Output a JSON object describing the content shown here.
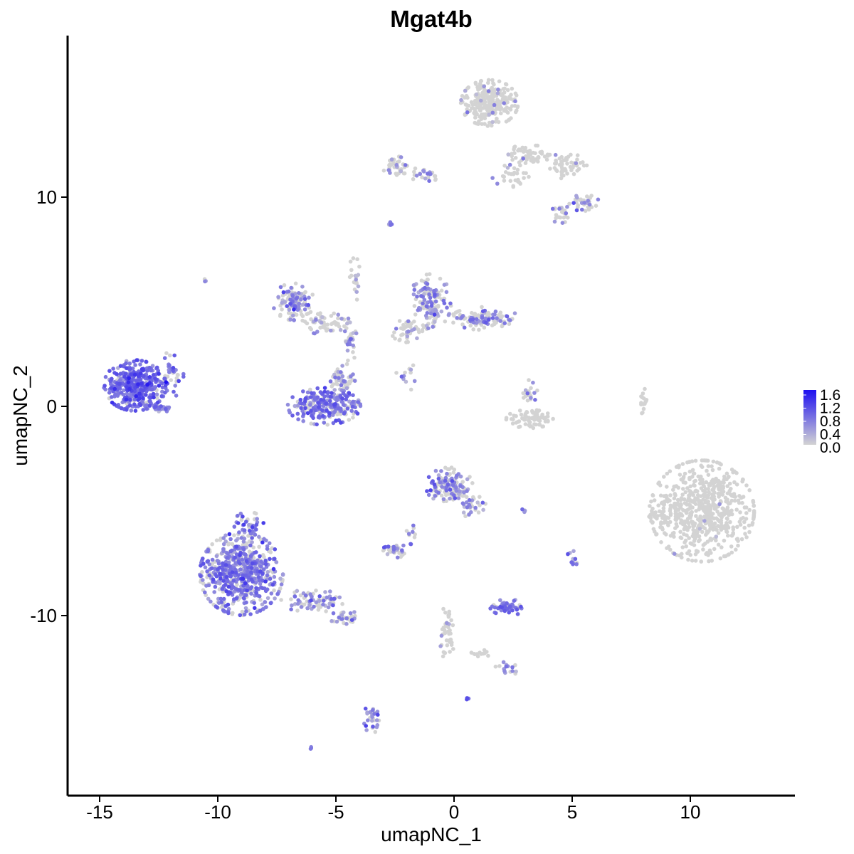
{
  "chart_data": {
    "type": "scatter",
    "title": "Mgat4b",
    "xlabel": "umapNC_1",
    "ylabel": "umapNC_2",
    "xlim": [
      -16.5,
      14.5
    ],
    "ylim": [
      -18.5,
      17.5
    ],
    "x_ticks": [
      -15,
      -10,
      -5,
      0,
      5,
      10
    ],
    "x_tick_labels": [
      "-15",
      "-10",
      "-5",
      "0",
      "5",
      "10"
    ],
    "y_ticks": [
      -10,
      0,
      10
    ],
    "y_tick_labels": [
      "-10",
      "0",
      "10"
    ],
    "grid": false,
    "legend": {
      "placement": "right",
      "type": "colorbar",
      "min": 0.0,
      "max": 1.6,
      "labels": [
        "1.6",
        "1.2",
        "0.8",
        "0.4",
        "0.0"
      ],
      "low_color": "#d3d3d3",
      "high_color": "#1e10f0"
    },
    "clusters": [
      {
        "cx": -13.5,
        "cy": 1.0,
        "rx": 1.2,
        "ry": 1.1,
        "n": 380,
        "expr": 0.85,
        "expr_frac": 0.9
      },
      {
        "cx": -12.0,
        "cy": 1.5,
        "rx": 0.5,
        "ry": 1.0,
        "n": 40,
        "expr": 0.8,
        "expr_frac": 0.85
      },
      {
        "cx": -12.4,
        "cy": -0.1,
        "rx": 0.5,
        "ry": 0.2,
        "n": 25,
        "expr": 0.7,
        "expr_frac": 0.7
      },
      {
        "cx": -5.5,
        "cy": 0.0,
        "rx": 1.4,
        "ry": 0.8,
        "n": 240,
        "expr": 0.75,
        "expr_frac": 0.75
      },
      {
        "cx": -4.8,
        "cy": 1.3,
        "rx": 0.7,
        "ry": 0.7,
        "n": 50,
        "expr": 0.5,
        "expr_frac": 0.4
      },
      {
        "cx": -6.8,
        "cy": 5.0,
        "rx": 0.8,
        "ry": 0.8,
        "n": 110,
        "expr": 0.6,
        "expr_frac": 0.45
      },
      {
        "cx": -5.5,
        "cy": 4.0,
        "rx": 1.0,
        "ry": 0.5,
        "n": 60,
        "expr": 0.5,
        "expr_frac": 0.35
      },
      {
        "cx": -4.5,
        "cy": 3.0,
        "rx": 0.4,
        "ry": 0.8,
        "n": 30,
        "expr": 0.5,
        "expr_frac": 0.35
      },
      {
        "cx": -4.2,
        "cy": 6.0,
        "rx": 0.3,
        "ry": 1.0,
        "n": 20,
        "expr": 0.4,
        "expr_frac": 0.2
      },
      {
        "cx": -1.0,
        "cy": 5.0,
        "rx": 0.8,
        "ry": 1.2,
        "n": 140,
        "expr": 0.6,
        "expr_frac": 0.5
      },
      {
        "cx": 1.3,
        "cy": 4.2,
        "rx": 1.3,
        "ry": 0.5,
        "n": 120,
        "expr": 0.6,
        "expr_frac": 0.4
      },
      {
        "cx": -2.0,
        "cy": 3.6,
        "rx": 0.6,
        "ry": 0.5,
        "n": 40,
        "expr": 0.4,
        "expr_frac": 0.25
      },
      {
        "cx": -2.0,
        "cy": 1.6,
        "rx": 0.4,
        "ry": 0.8,
        "n": 12,
        "expr": 0.4,
        "expr_frac": 0.2
      },
      {
        "cx": 1.5,
        "cy": 14.5,
        "rx": 1.1,
        "ry": 1.0,
        "n": 280,
        "expr": 0.5,
        "expr_frac": 0.03
      },
      {
        "cx": 3.2,
        "cy": 12.0,
        "rx": 1.0,
        "ry": 0.5,
        "n": 60,
        "expr": 0.5,
        "expr_frac": 0.03
      },
      {
        "cx": 4.8,
        "cy": 11.5,
        "rx": 0.8,
        "ry": 0.6,
        "n": 50,
        "expr": 0.5,
        "expr_frac": 0.05
      },
      {
        "cx": 5.5,
        "cy": 9.7,
        "rx": 0.6,
        "ry": 0.4,
        "n": 35,
        "expr": 0.6,
        "expr_frac": 0.3
      },
      {
        "cx": 4.5,
        "cy": 9.2,
        "rx": 0.4,
        "ry": 0.4,
        "n": 25,
        "expr": 0.6,
        "expr_frac": 0.3
      },
      {
        "cx": 2.5,
        "cy": 11.0,
        "rx": 0.8,
        "ry": 0.5,
        "n": 30,
        "expr": 0.5,
        "expr_frac": 0.03
      },
      {
        "cx": -2.5,
        "cy": 11.5,
        "rx": 0.5,
        "ry": 0.5,
        "n": 40,
        "expr": 0.6,
        "expr_frac": 0.15
      },
      {
        "cx": -1.2,
        "cy": 11.1,
        "rx": 0.7,
        "ry": 0.3,
        "n": 25,
        "expr": 0.6,
        "expr_frac": 0.3
      },
      {
        "cx": -2.7,
        "cy": 8.7,
        "rx": 0.1,
        "ry": 0.2,
        "n": 5,
        "expr": 0.7,
        "expr_frac": 0.6
      },
      {
        "cx": 10.5,
        "cy": -5.0,
        "rx": 2.0,
        "ry": 2.2,
        "n": 620,
        "expr": 0.5,
        "expr_frac": 0.01
      },
      {
        "cx": 8.8,
        "cy": -5.0,
        "rx": 0.6,
        "ry": 0.8,
        "n": 30,
        "expr": 0.5,
        "expr_frac": 0.02
      },
      {
        "cx": 3.2,
        "cy": -0.6,
        "rx": 0.9,
        "ry": 0.4,
        "n": 80,
        "expr": 0.5,
        "expr_frac": 0.03
      },
      {
        "cx": 3.2,
        "cy": 0.6,
        "rx": 0.3,
        "ry": 0.6,
        "n": 20,
        "expr": 0.6,
        "expr_frac": 0.4
      },
      {
        "cx": 8.0,
        "cy": 0.3,
        "rx": 0.15,
        "ry": 0.6,
        "n": 15,
        "expr": 0.5,
        "expr_frac": 0.0
      },
      {
        "cx": -0.2,
        "cy": -3.8,
        "rx": 0.9,
        "ry": 0.8,
        "n": 140,
        "expr": 0.6,
        "expr_frac": 0.45
      },
      {
        "cx": 0.8,
        "cy": -4.8,
        "rx": 0.5,
        "ry": 0.5,
        "n": 30,
        "expr": 0.5,
        "expr_frac": 0.35
      },
      {
        "cx": -9.0,
        "cy": -8.0,
        "rx": 1.6,
        "ry": 1.8,
        "n": 620,
        "expr": 0.7,
        "expr_frac": 0.72
      },
      {
        "cx": -8.7,
        "cy": -5.7,
        "rx": 0.6,
        "ry": 0.6,
        "n": 40,
        "expr": 0.7,
        "expr_frac": 0.65
      },
      {
        "cx": -6.0,
        "cy": -9.3,
        "rx": 1.2,
        "ry": 0.5,
        "n": 80,
        "expr": 0.6,
        "expr_frac": 0.5
      },
      {
        "cx": -4.6,
        "cy": -10.1,
        "rx": 0.6,
        "ry": 0.3,
        "n": 30,
        "expr": 0.6,
        "expr_frac": 0.4
      },
      {
        "cx": -2.5,
        "cy": -6.9,
        "rx": 0.5,
        "ry": 0.3,
        "n": 35,
        "expr": 0.7,
        "expr_frac": 0.55
      },
      {
        "cx": -1.8,
        "cy": -6.0,
        "rx": 0.2,
        "ry": 0.6,
        "n": 10,
        "expr": 0.6,
        "expr_frac": 0.5
      },
      {
        "cx": 2.3,
        "cy": -9.6,
        "rx": 0.7,
        "ry": 0.35,
        "n": 60,
        "expr": 0.75,
        "expr_frac": 0.8
      },
      {
        "cx": 5.0,
        "cy": -7.3,
        "rx": 0.2,
        "ry": 0.4,
        "n": 12,
        "expr": 0.7,
        "expr_frac": 0.7
      },
      {
        "cx": -0.3,
        "cy": -10.8,
        "rx": 0.3,
        "ry": 1.2,
        "n": 40,
        "expr": 0.4,
        "expr_frac": 0.1
      },
      {
        "cx": 2.3,
        "cy": -12.5,
        "rx": 0.5,
        "ry": 0.3,
        "n": 15,
        "expr": 0.7,
        "expr_frac": 0.6
      },
      {
        "cx": -3.5,
        "cy": -14.8,
        "rx": 0.3,
        "ry": 0.8,
        "n": 30,
        "expr": 0.6,
        "expr_frac": 0.5
      },
      {
        "cx": 1.0,
        "cy": -11.8,
        "rx": 0.6,
        "ry": 0.2,
        "n": 12,
        "expr": 0.4,
        "expr_frac": 0.1
      },
      {
        "cx": 3.0,
        "cy": -5.0,
        "rx": 0.2,
        "ry": 0.1,
        "n": 4,
        "expr": 0.6,
        "expr_frac": 0.5
      },
      {
        "cx": 0.6,
        "cy": -14.0,
        "rx": 0.1,
        "ry": 0.1,
        "n": 3,
        "expr": 0.9,
        "expr_frac": 1.0
      },
      {
        "cx": -6.0,
        "cy": -16.3,
        "rx": 0.1,
        "ry": 0.1,
        "n": 3,
        "expr": 0.8,
        "expr_frac": 1.0
      },
      {
        "cx": -10.5,
        "cy": 6.0,
        "rx": 0.1,
        "ry": 0.1,
        "n": 3,
        "expr": 0.5,
        "expr_frac": 0.5
      }
    ]
  }
}
